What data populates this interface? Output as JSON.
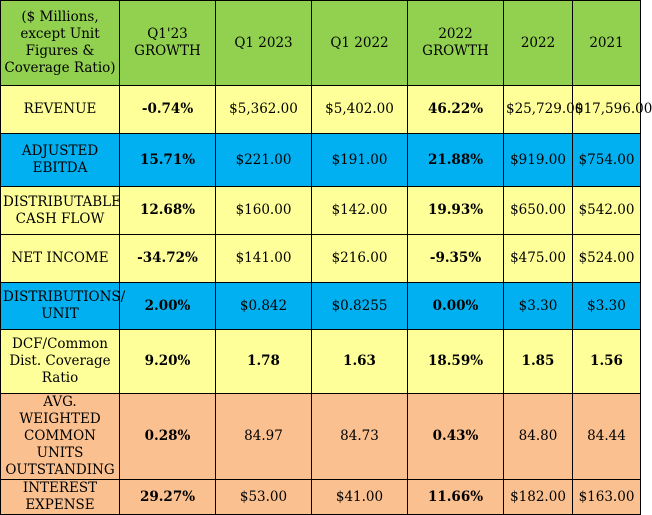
{
  "colors": {
    "header_bg": "#92d050",
    "yellow_bg": "#ffff99",
    "blue_bg": "#00b0f0",
    "orange_bg": "#fac090",
    "border": "#000000"
  },
  "header": {
    "label": "($ Millions, except Unit Figures & Coverage Ratio)",
    "columns": [
      "Q1'23 GROWTH",
      "Q1 2023",
      "Q1 2022",
      "2022 GROWTH",
      "2022",
      "2021"
    ]
  },
  "rows": [
    {
      "label": "REVENUE",
      "bg": "yellow",
      "values": [
        "-0.74%",
        "$5,362.00",
        "$5,402.00",
        "46.22%",
        "$25,729.00",
        "$17,596.00"
      ]
    },
    {
      "label": "ADJUSTED EBITDA",
      "bg": "blue",
      "values": [
        "15.71%",
        "$221.00",
        "$191.00",
        "21.88%",
        "$919.00",
        "$754.00"
      ]
    },
    {
      "label": "DISTRIBUTABLE CASH FLOW",
      "bg": "yellow",
      "values": [
        "12.68%",
        "$160.00",
        "$142.00",
        "19.93%",
        "$650.00",
        "$542.00"
      ]
    },
    {
      "label": "NET INCOME",
      "bg": "yellow",
      "values": [
        "-34.72%",
        "$141.00",
        "$216.00",
        "-9.35%",
        "$475.00",
        "$524.00"
      ]
    },
    {
      "label": "DISTRIBUTIONS/ UNIT",
      "bg": "blue",
      "values": [
        "2.00%",
        "$0.842",
        "$0.8255",
        "0.00%",
        "$3.30",
        "$3.30"
      ]
    },
    {
      "label": "DCF/Common Dist. Coverage Ratio",
      "bg": "yellow",
      "values": [
        "9.20%",
        "1.78",
        "1.63",
        "18.59%",
        "1.85",
        "1.56"
      ]
    },
    {
      "label": "AVG. WEIGHTED COMMON UNITS OUTSTANDING",
      "bg": "orange",
      "values": [
        "0.28%",
        "84.97",
        "84.73",
        "0.43%",
        "84.80",
        "84.44"
      ]
    },
    {
      "label": "INTEREST EXPENSE",
      "bg": "orange",
      "values": [
        "29.27%",
        "$53.00",
        "$41.00",
        "11.66%",
        "$182.00",
        "$163.00"
      ]
    }
  ]
}
